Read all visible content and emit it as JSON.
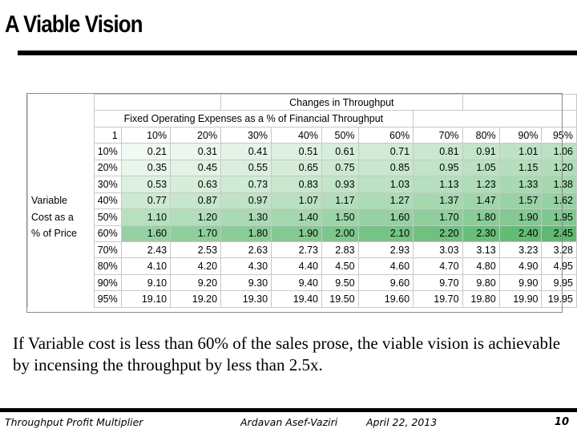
{
  "slide": {
    "title": "A Viable Vision",
    "body": "If Variable cost is less than 60% of the sales prose, the viable vision is achievable by incensing the throughput by less than 2.5x."
  },
  "table": {
    "header_top": "Changes in Throughput",
    "header_sub": "Fixed Operating Expenses as a % of Financial Throughput",
    "corner_value": "1",
    "column_headers": [
      "10%",
      "20%",
      "30%",
      "40%",
      "50%",
      "60%",
      "70%",
      "80%",
      "90%",
      "95%"
    ],
    "row_group_label": [
      "Variable",
      "Cost as a",
      "% of Price"
    ],
    "rows": [
      {
        "label": "10%",
        "values": [
          "0.21",
          "0.31",
          "0.41",
          "0.51",
          "0.61",
          "0.71",
          "0.81",
          "0.91",
          "1.01",
          "1.06"
        ]
      },
      {
        "label": "20%",
        "values": [
          "0.35",
          "0.45",
          "0.55",
          "0.65",
          "0.75",
          "0.85",
          "0.95",
          "1.05",
          "1.15",
          "1.20"
        ]
      },
      {
        "label": "30%",
        "values": [
          "0.53",
          "0.63",
          "0.73",
          "0.83",
          "0.93",
          "1.03",
          "1.13",
          "1.23",
          "1.33",
          "1.38"
        ]
      },
      {
        "label": "40%",
        "values": [
          "0.77",
          "0.87",
          "0.97",
          "1.07",
          "1.17",
          "1.27",
          "1.37",
          "1.47",
          "1.57",
          "1.62"
        ]
      },
      {
        "label": "50%",
        "values": [
          "1.10",
          "1.20",
          "1.30",
          "1.40",
          "1.50",
          "1.60",
          "1.70",
          "1.80",
          "1.90",
          "1.95"
        ]
      },
      {
        "label": "60%",
        "values": [
          "1.60",
          "1.70",
          "1.80",
          "1.90",
          "2.00",
          "2.10",
          "2.20",
          "2.30",
          "2.40",
          "2.45"
        ]
      },
      {
        "label": "70%",
        "values": [
          "2.43",
          "2.53",
          "2.63",
          "2.73",
          "2.83",
          "2.93",
          "3.03",
          "3.13",
          "3.23",
          "3.28"
        ]
      },
      {
        "label": "80%",
        "values": [
          "4.10",
          "4.20",
          "4.30",
          "4.40",
          "4.50",
          "4.60",
          "4.70",
          "4.80",
          "4.90",
          "4.95"
        ]
      },
      {
        "label": "90%",
        "values": [
          "9.10",
          "9.20",
          "9.30",
          "9.40",
          "9.50",
          "9.60",
          "9.70",
          "9.80",
          "9.90",
          "9.95"
        ]
      },
      {
        "label": "95%",
        "values": [
          "19.10",
          "19.20",
          "19.30",
          "19.40",
          "19.50",
          "19.60",
          "19.70",
          "19.80",
          "19.90",
          "19.95"
        ]
      }
    ],
    "heat_colors": {
      "light": "#f2f9f3",
      "dark": "#5cb86f"
    }
  },
  "footer": {
    "left": "Throughput Profit Multiplier",
    "author": "Ardavan Asef-Vaziri",
    "date": "April 22, 2013",
    "page": "10"
  }
}
